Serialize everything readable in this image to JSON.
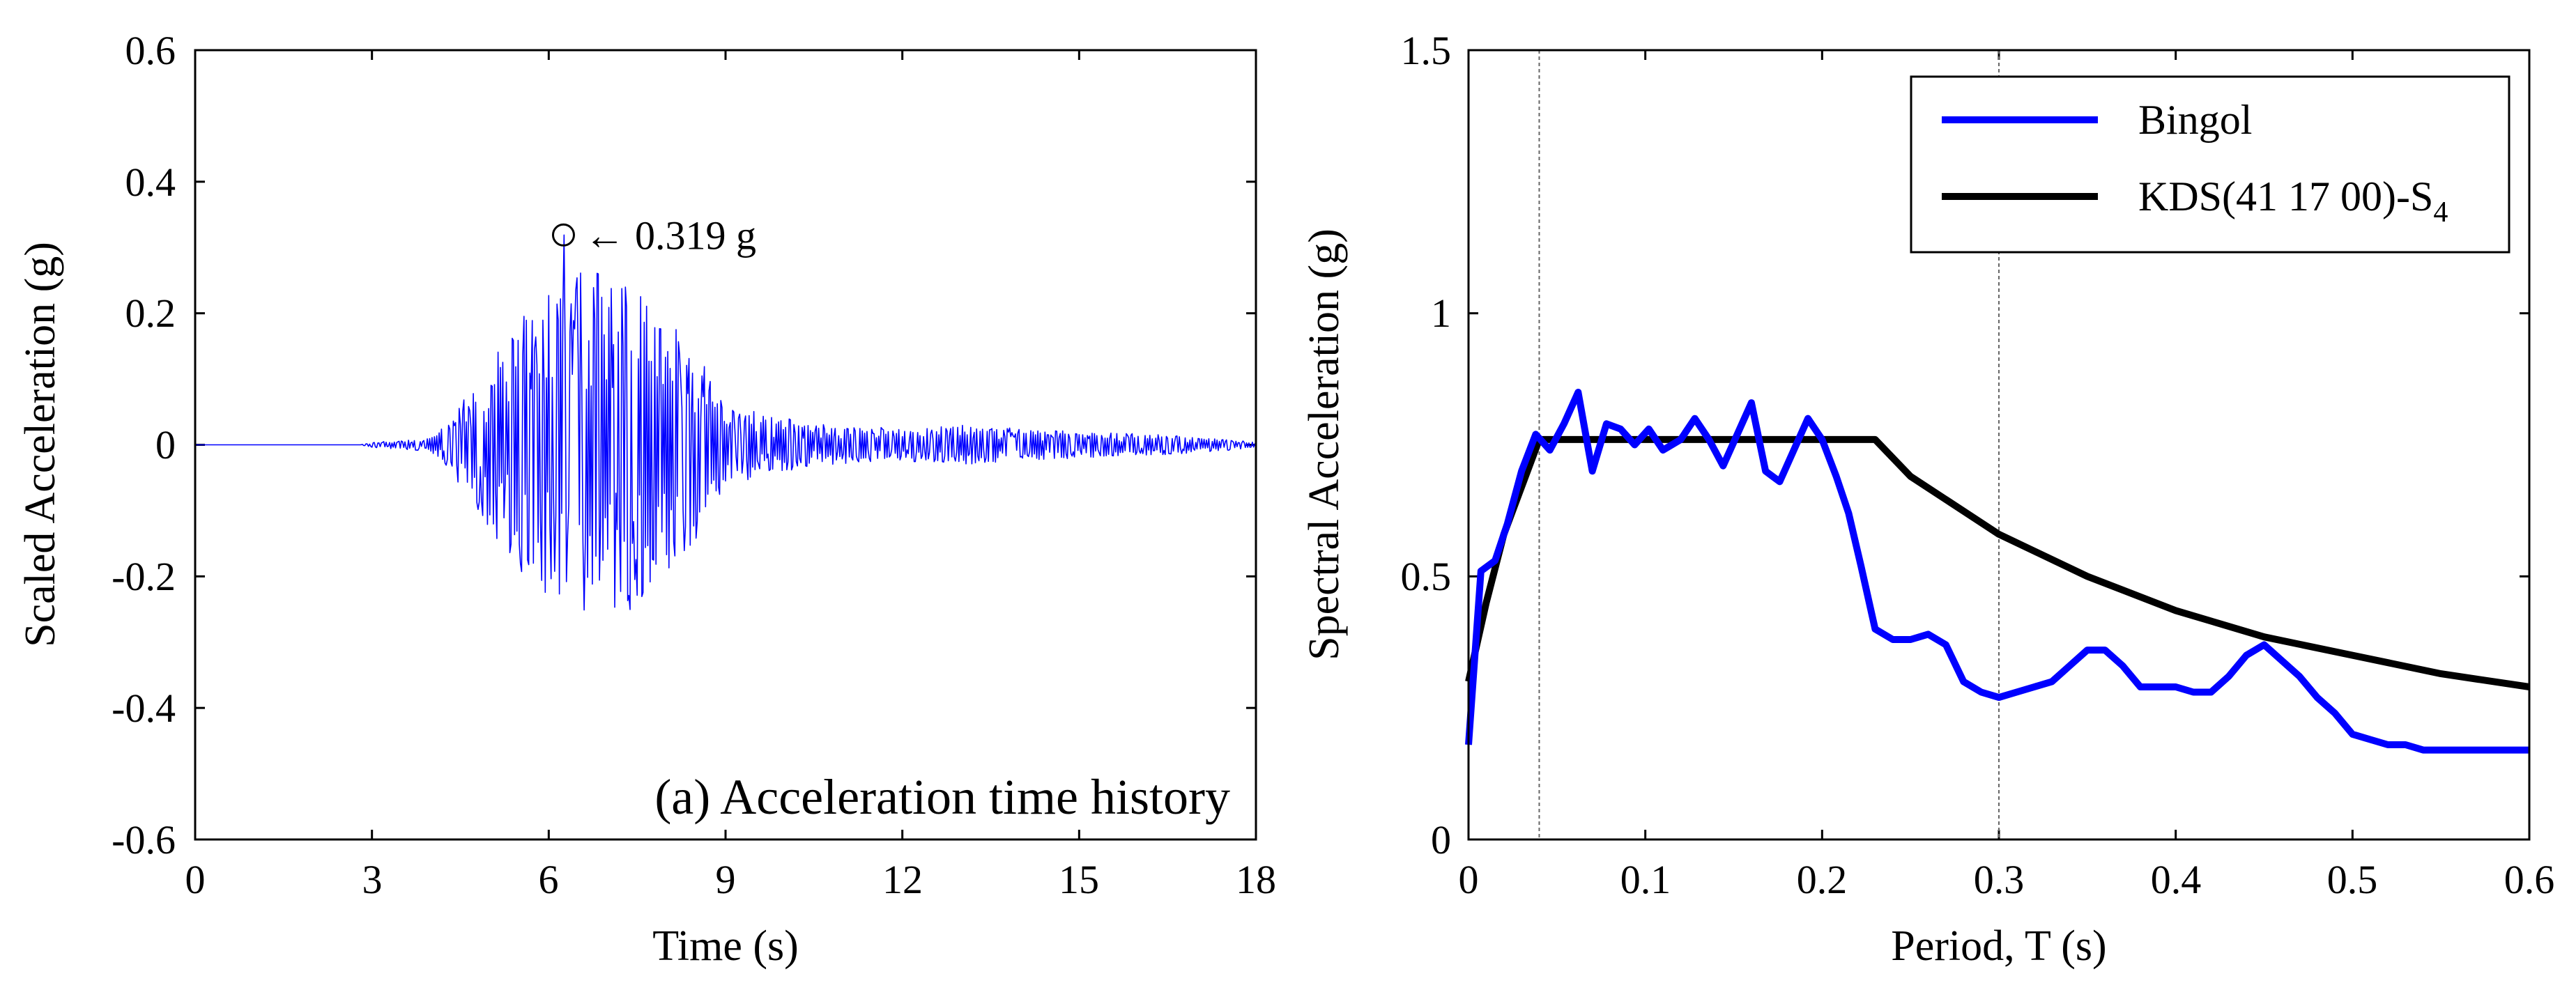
{
  "colors": {
    "blue": "#0000ff",
    "black": "#000000",
    "grid": "#666666"
  },
  "chart_data": [
    {
      "type": "line",
      "title": "(a) Acceleration time history",
      "xlabel": "Time (s)",
      "ylabel": "Scaled Acceleration (g)",
      "xlim": [
        0,
        18
      ],
      "ylim": [
        -0.6,
        0.6
      ],
      "xticks": [
        0,
        3,
        6,
        9,
        12,
        15,
        18
      ],
      "xtick_labels": [
        "0",
        "3",
        "6",
        "9",
        "12",
        "15",
        "18"
      ],
      "yticks": [
        -0.6,
        -0.4,
        -0.2,
        0,
        0.2,
        0.4,
        0.6
      ],
      "ytick_labels": [
        "-0.6",
        "-0.4",
        "-0.2",
        "0",
        "0.2",
        "0.4",
        "0.6"
      ],
      "peak": {
        "t": 6.25,
        "value": 0.319,
        "label": "← 0.319 g"
      },
      "envelope": [
        {
          "t": 0,
          "amp": 0
        },
        {
          "t": 2.8,
          "amp": 0
        },
        {
          "t": 3.0,
          "amp": 0.004
        },
        {
          "t": 4.0,
          "amp": 0.01
        },
        {
          "t": 4.3,
          "amp": 0.035
        },
        {
          "t": 5.0,
          "amp": 0.13
        },
        {
          "t": 5.5,
          "amp": 0.19
        },
        {
          "t": 6.2,
          "amp": 0.26
        },
        {
          "t": 6.6,
          "amp": 0.27
        },
        {
          "t": 7.6,
          "amp": 0.25
        },
        {
          "t": 8.0,
          "amp": 0.21
        },
        {
          "t": 8.6,
          "amp": 0.13
        },
        {
          "t": 9.0,
          "amp": 0.06
        },
        {
          "t": 10.5,
          "amp": 0.032
        },
        {
          "t": 12.0,
          "amp": 0.025
        },
        {
          "t": 13.0,
          "amp": 0.03
        },
        {
          "t": 15.0,
          "amp": 0.02
        },
        {
          "t": 16.5,
          "amp": 0.015
        },
        {
          "t": 17.6,
          "amp": 0.008
        },
        {
          "t": 18.0,
          "amp": 0.004
        }
      ],
      "series": [
        {
          "name": "Scaled acceleration",
          "color": "#0000ff"
        }
      ]
    },
    {
      "type": "line",
      "title": "",
      "xlabel": "Period, T (s)",
      "ylabel": "Spectral Acceleration (g)",
      "xlim": [
        0,
        0.6
      ],
      "ylim": [
        0,
        1.5
      ],
      "xticks": [
        0,
        0.1,
        0.2,
        0.3,
        0.4,
        0.5,
        0.6
      ],
      "xtick_labels": [
        "0",
        "0.1",
        "0.2",
        "0.3",
        "0.4",
        "0.5",
        "0.6"
      ],
      "yticks": [
        0,
        0.5,
        1,
        1.5
      ],
      "ytick_labels": [
        "0",
        "0.5",
        "1",
        "1.5"
      ],
      "ref_lines_x": [
        0.04,
        0.3
      ],
      "legend": {
        "placement": "top-right"
      },
      "series": [
        {
          "name": "Bingol",
          "color": "#0000ff",
          "x": [
            0.0,
            0.007,
            0.015,
            0.022,
            0.03,
            0.038,
            0.046,
            0.054,
            0.062,
            0.07,
            0.078,
            0.086,
            0.094,
            0.102,
            0.11,
            0.12,
            0.128,
            0.136,
            0.144,
            0.152,
            0.16,
            0.168,
            0.176,
            0.184,
            0.192,
            0.2,
            0.208,
            0.215,
            0.222,
            0.23,
            0.24,
            0.25,
            0.26,
            0.27,
            0.28,
            0.29,
            0.3,
            0.31,
            0.32,
            0.33,
            0.34,
            0.35,
            0.36,
            0.37,
            0.38,
            0.39,
            0.4,
            0.41,
            0.42,
            0.43,
            0.44,
            0.45,
            0.46,
            0.47,
            0.48,
            0.49,
            0.5,
            0.51,
            0.52,
            0.53,
            0.54,
            0.55,
            0.56,
            0.57,
            0.58,
            0.59,
            0.6
          ],
          "values": [
            0.18,
            0.51,
            0.53,
            0.6,
            0.7,
            0.77,
            0.74,
            0.79,
            0.85,
            0.7,
            0.79,
            0.78,
            0.75,
            0.78,
            0.74,
            0.76,
            0.8,
            0.76,
            0.71,
            0.77,
            0.83,
            0.7,
            0.68,
            0.74,
            0.8,
            0.76,
            0.69,
            0.62,
            0.52,
            0.4,
            0.38,
            0.38,
            0.39,
            0.37,
            0.3,
            0.28,
            0.27,
            0.28,
            0.29,
            0.3,
            0.33,
            0.36,
            0.36,
            0.33,
            0.29,
            0.29,
            0.29,
            0.28,
            0.28,
            0.31,
            0.35,
            0.37,
            0.34,
            0.31,
            0.27,
            0.24,
            0.2,
            0.19,
            0.18,
            0.18,
            0.17,
            0.17,
            0.17,
            0.17,
            0.17,
            0.17,
            0.17
          ]
        },
        {
          "name": "KDS(41 17 00)-S",
          "subscript": "4",
          "color": "#000000",
          "x": [
            0.0,
            0.01,
            0.02,
            0.03,
            0.04,
            0.05,
            0.23,
            0.25,
            0.3,
            0.35,
            0.4,
            0.45,
            0.5,
            0.55,
            0.6
          ],
          "values": [
            0.3,
            0.45,
            0.58,
            0.67,
            0.76,
            0.76,
            0.76,
            0.69,
            0.58,
            0.5,
            0.435,
            0.385,
            0.35,
            0.315,
            0.29
          ]
        }
      ]
    }
  ]
}
